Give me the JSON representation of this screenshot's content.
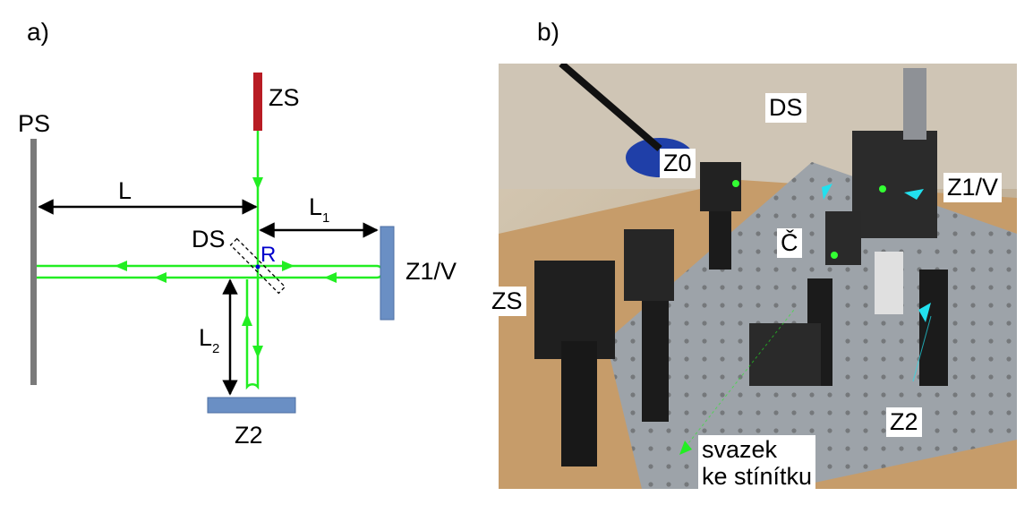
{
  "panel_a": {
    "label": "a)",
    "labels": {
      "ps": "PS",
      "zs": "ZS",
      "l": "L",
      "l1_main": "L",
      "l1_sub": "1",
      "ds": "DS",
      "r": "R",
      "z1v": "Z1/V",
      "l2_main": "L",
      "l2_sub": "2",
      "z2": "Z2"
    },
    "colors": {
      "beam": "#22ee22",
      "laser": "#b81c24",
      "screen": "#7a7a7a",
      "mirror": "#6a8fc4",
      "splitter_point": "#0000cc"
    }
  },
  "panel_b": {
    "label": "b)",
    "tags": {
      "ds": "DS",
      "z0": "Z0",
      "z1v": "Z1/V",
      "c": "Č",
      "zs": "ZS",
      "z2": "Z2",
      "beam_line1": "svazek",
      "beam_line2": "ke stínítku"
    },
    "colors": {
      "arrow": "#22e0ee",
      "beam_arrow": "#22ee22"
    }
  }
}
